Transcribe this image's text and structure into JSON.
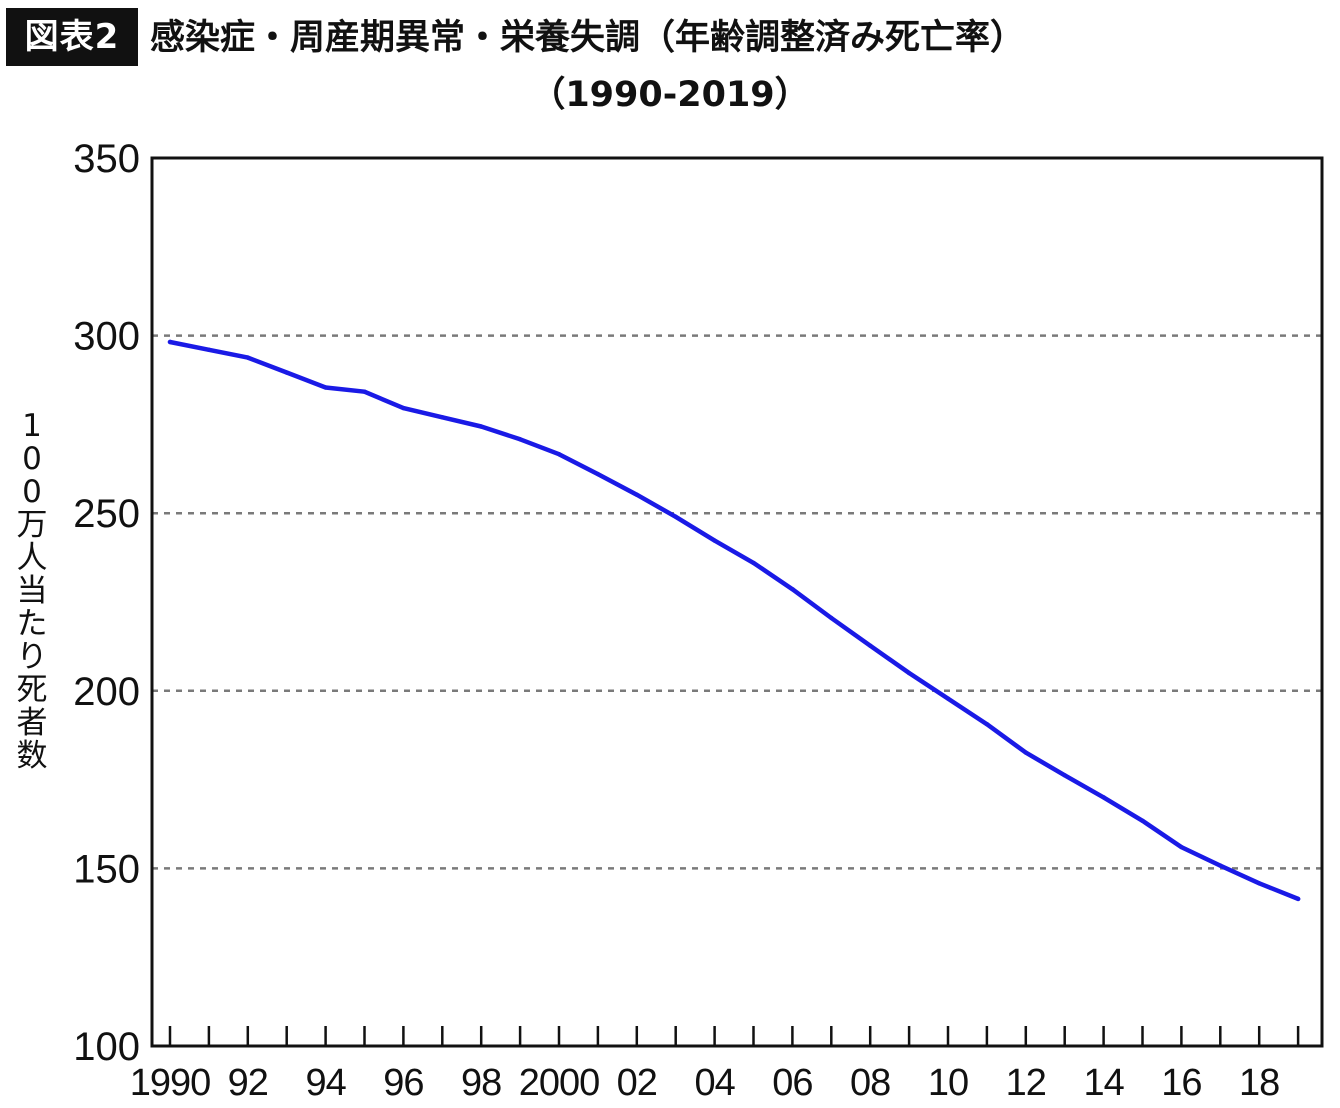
{
  "badge": "図表2",
  "title": "感染症・周産期異常・栄養失調（年齢調整済み死亡率）",
  "subtitle": "（1990-2019）",
  "chart_data": {
    "type": "line",
    "title": "感染症・周産期異常・栄養失調（年齢調整済み死亡率）（1990-2019）",
    "ylabel": "100万人当たり死者数",
    "xlabel": "",
    "ylim": [
      100,
      350
    ],
    "yticks": [
      100,
      150,
      200,
      250,
      300,
      350
    ],
    "xlim": [
      1990,
      2019
    ],
    "xtick_labels": [
      {
        "year": 1990,
        "label": "1990"
      },
      {
        "year": 1992,
        "label": "92"
      },
      {
        "year": 1994,
        "label": "94"
      },
      {
        "year": 1996,
        "label": "96"
      },
      {
        "year": 1998,
        "label": "98"
      },
      {
        "year": 2000,
        "label": "2000"
      },
      {
        "year": 2002,
        "label": "02"
      },
      {
        "year": 2004,
        "label": "04"
      },
      {
        "year": 2006,
        "label": "06"
      },
      {
        "year": 2008,
        "label": "08"
      },
      {
        "year": 2010,
        "label": "10"
      },
      {
        "year": 2012,
        "label": "12"
      },
      {
        "year": 2014,
        "label": "14"
      },
      {
        "year": 2016,
        "label": "16"
      },
      {
        "year": 2018,
        "label": "18"
      }
    ],
    "gridlines_y": [
      150,
      200,
      250,
      300
    ],
    "grid": "dashed horizontal",
    "series": [
      {
        "color": "#1a1ae6",
        "x": [
          1990,
          1991,
          1992,
          1993,
          1994,
          1995,
          1996,
          1997,
          1998,
          1999,
          2000,
          2001,
          2002,
          2003,
          2004,
          2005,
          2006,
          2007,
          2008,
          2009,
          2010,
          2011,
          2012,
          2013,
          2014,
          2015,
          2016,
          2017,
          2018,
          2019
        ],
        "values": [
          298.2,
          296.0,
          293.8,
          289.6,
          285.4,
          284.2,
          279.6,
          277.0,
          274.4,
          270.8,
          266.6,
          261.0,
          255.2,
          249.0,
          242.3,
          236.0,
          228.6,
          220.5,
          212.7,
          205.0,
          197.8,
          190.6,
          182.6,
          176.2,
          170.0,
          163.4,
          156.0,
          150.8,
          145.8,
          141.4
        ]
      }
    ],
    "axis_color": "#111111",
    "grid_color": "#7a7a7a"
  }
}
